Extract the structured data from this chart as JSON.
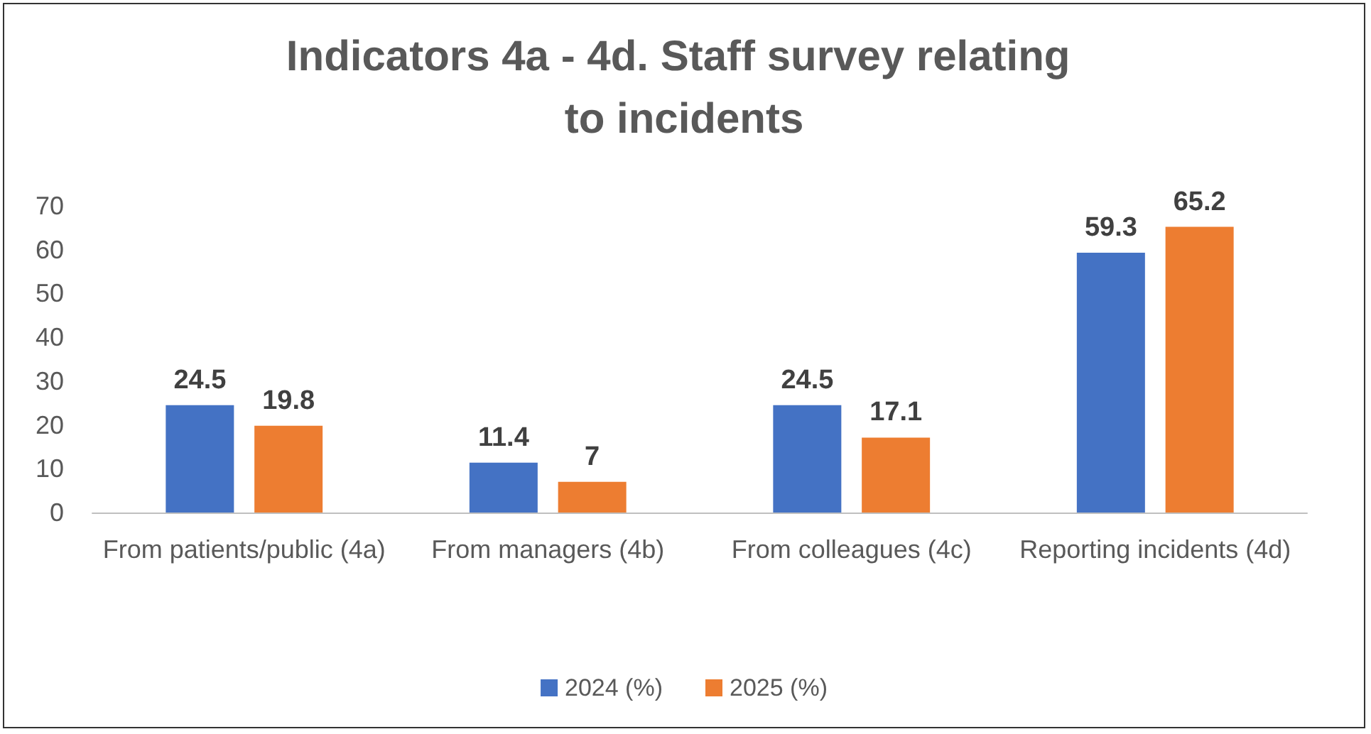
{
  "chart_data": {
    "type": "bar",
    "title": "Indicators 4a - 4d. Staff survey relating to incidents",
    "categories": [
      "From patients/public (4a)",
      "From managers (4b)",
      "From colleagues (4c)",
      "Reporting incidents (4d)"
    ],
    "series": [
      {
        "name": "2024 (%)",
        "color": "#4472c4",
        "values": [
          24.5,
          11.4,
          24.5,
          59.3
        ]
      },
      {
        "name": "2025 (%)",
        "color": "#ed7d31",
        "values": [
          19.8,
          7,
          17.1,
          65.2
        ]
      }
    ],
    "ylim": [
      0,
      70
    ],
    "yticks": [
      0,
      10,
      20,
      30,
      40,
      50,
      60,
      70
    ],
    "grid": false,
    "legend": "bottom",
    "data_labels": true
  }
}
